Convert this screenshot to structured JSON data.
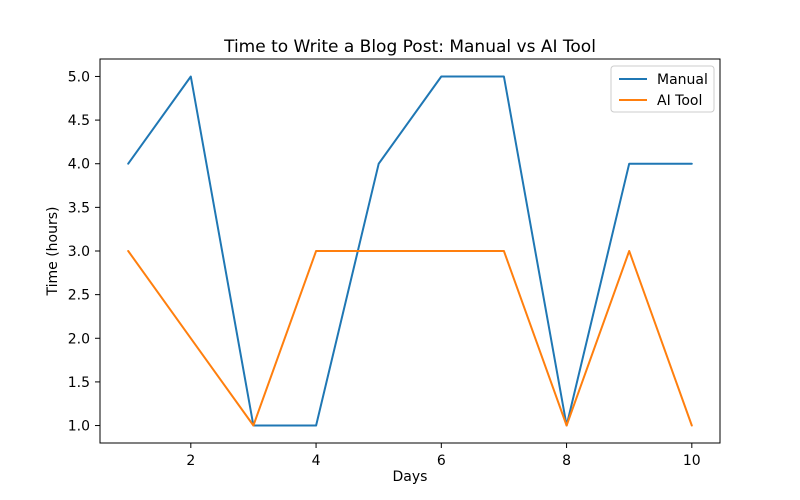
{
  "figure": {
    "background": "#ffffff",
    "axes_edge_color": "#000000"
  },
  "chart_data": {
    "type": "line",
    "title": "Time to Write a Blog Post: Manual vs AI Tool",
    "xlabel": "Days",
    "ylabel": "Time (hours)",
    "x": [
      1,
      2,
      3,
      4,
      5,
      6,
      7,
      8,
      9,
      10
    ],
    "series": [
      {
        "name": "Manual",
        "color": "#1f77b4",
        "values": [
          4,
          5,
          1,
          1,
          4,
          5,
          5,
          1,
          4,
          4
        ]
      },
      {
        "name": "AI Tool",
        "color": "#ff7f0e",
        "values": [
          3,
          2,
          1,
          3,
          3,
          3,
          3,
          1,
          3,
          1
        ]
      }
    ],
    "xlim": [
      0.55,
      10.45
    ],
    "ylim": [
      0.8,
      5.2
    ],
    "xticks": [
      2,
      4,
      6,
      8,
      10
    ],
    "xtick_labels": [
      "2",
      "4",
      "6",
      "8",
      "10"
    ],
    "yticks": [
      1.0,
      1.5,
      2.0,
      2.5,
      3.0,
      3.5,
      4.0,
      4.5,
      5.0
    ],
    "ytick_labels": [
      "1.0",
      "1.5",
      "2.0",
      "2.5",
      "3.0",
      "3.5",
      "4.0",
      "4.5",
      "5.0"
    ],
    "grid": false,
    "legend_position": "upper right",
    "legend_border_color": "#cccccc"
  }
}
